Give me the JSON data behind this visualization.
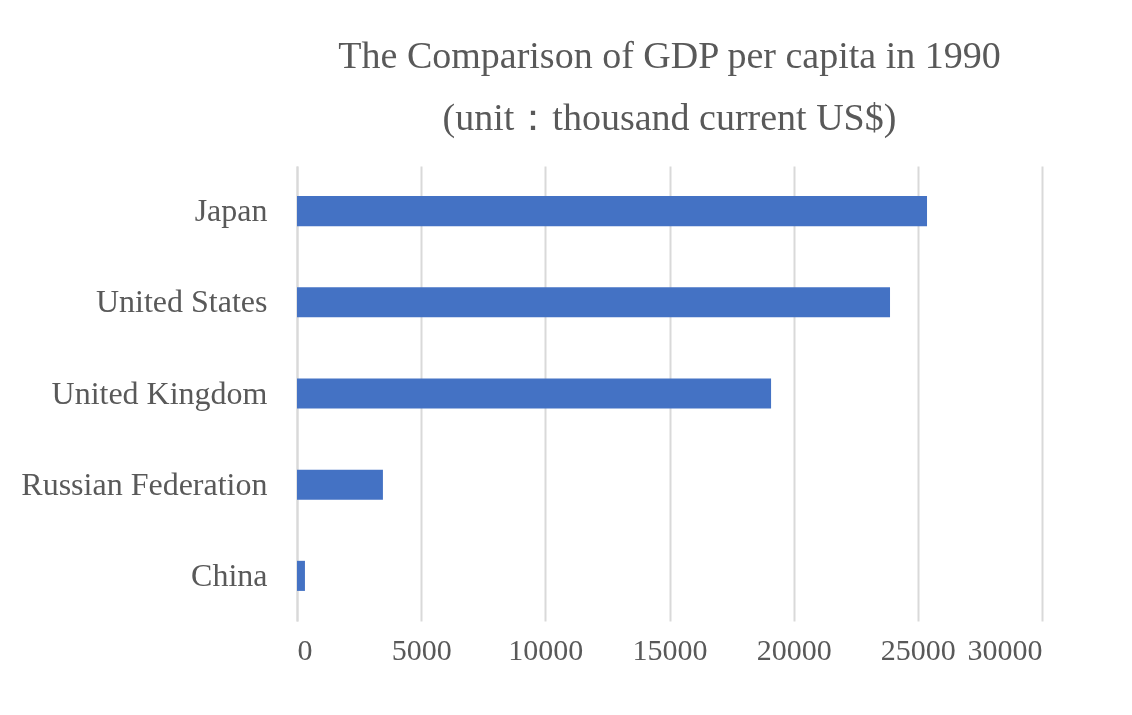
{
  "chart_data": {
    "type": "bar",
    "orientation": "horizontal",
    "title": [
      "The Comparison of GDP per capita in 1990",
      "(unit：thousand current US$)"
    ],
    "categories": [
      "Japan",
      "United States",
      "United Kingdom",
      "Russian Federation",
      "China"
    ],
    "values": [
      25370,
      23880,
      19090,
      3460,
      320
    ],
    "color": "#4472c4",
    "xlim": [
      0,
      30000
    ],
    "xticks": [
      0,
      5000,
      10000,
      15000,
      20000,
      25000,
      30000
    ],
    "grid": "x"
  }
}
